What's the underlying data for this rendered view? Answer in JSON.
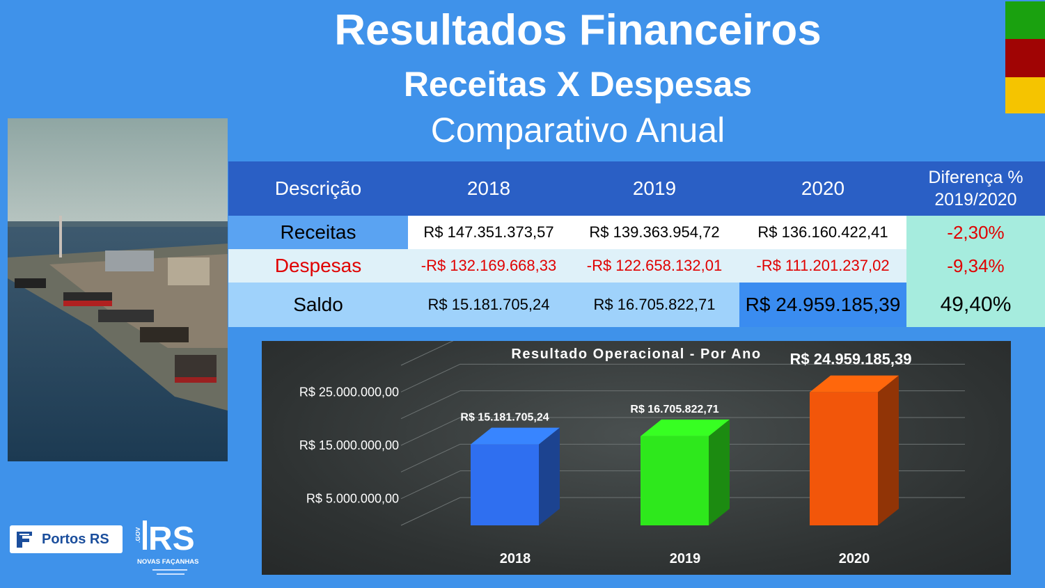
{
  "header": {
    "title": "Resultados Financeiros",
    "subtitle": "Receitas X Despesas",
    "subtitle2": "Comparativo Anual"
  },
  "table": {
    "headers": [
      "Descrição",
      "2018",
      "2019",
      "2020"
    ],
    "diff_header_line1": "Diferença %",
    "diff_header_line2": "2019/2020",
    "rows": [
      {
        "label": "Receitas",
        "values": [
          "R$ 147.351.373,57",
          "R$ 139.363.954,72",
          "R$ 136.160.422,41"
        ],
        "diff": "-2,30%"
      },
      {
        "label": "Despesas",
        "values": [
          "-R$ 132.169.668,33",
          "-R$ 122.658.132,01",
          "-R$ 111.201.237,02"
        ],
        "diff": "-9,34%"
      },
      {
        "label": "Saldo",
        "values": [
          "R$ 15.181.705,24",
          "R$ 16.705.822,71",
          "R$ 24.959.185,39"
        ],
        "diff": "49,40%"
      }
    ]
  },
  "chart_data": {
    "type": "bar",
    "title": "Resultado Operacional - Por Ano",
    "categories": [
      "2018",
      "2019",
      "2020"
    ],
    "values": [
      15181705.24,
      16705822.71,
      24959185.39
    ],
    "data_labels": [
      "R$ 15.181.705,24",
      "R$ 16.705.822,71",
      "R$ 24.959.185,39"
    ],
    "y_ticks": [
      5000000,
      15000000,
      25000000
    ],
    "y_tick_labels": [
      "R$ 5.000.000,00",
      "R$ 15.000.000,00",
      "R$ 25.000.000,00"
    ],
    "ylim": [
      0,
      30000000
    ],
    "grid": true,
    "colors": [
      "#2f6ff0",
      "#2ee81c",
      "#f2560a"
    ]
  },
  "logos": {
    "portos": "Portos RS",
    "rs_gov": "RS",
    "rs_tagline": "NOVAS FAÇANHAS"
  },
  "colors": {
    "background": "#3f92ea",
    "table_header": "#2a5fc5",
    "negative": "#e00000",
    "flag_green": "#1aa10f",
    "flag_red": "#a00404",
    "flag_yellow": "#f5c400"
  }
}
